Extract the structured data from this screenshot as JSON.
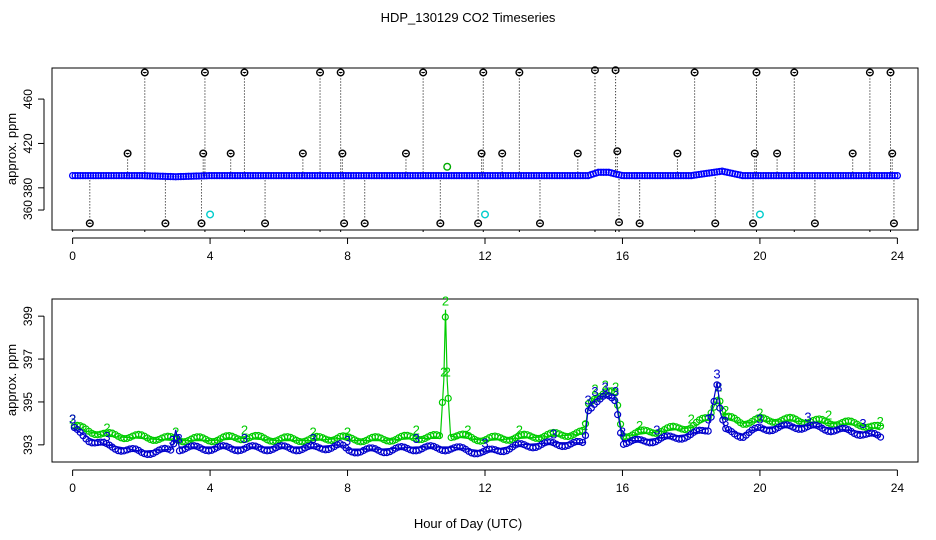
{
  "title": "HDP_130129  CO2 Timeseries",
  "xlabel": "Hour of Day (UTC)",
  "chart_data": [
    {
      "type": "scatter",
      "panel": "top",
      "ylabel": "approx. ppm",
      "xlim": [
        -0.6,
        24.6
      ],
      "ylim": [
        342,
        488
      ],
      "xticks": [
        0,
        4,
        8,
        12,
        16,
        20,
        24
      ],
      "yticks": [
        360,
        380,
        420,
        460
      ],
      "baseline": {
        "name": "blue series (~391 ppm)",
        "color": "#0000ff",
        "x": [
          0,
          2,
          3,
          4,
          8,
          12,
          14,
          15,
          15.3,
          15.6,
          16,
          18,
          18.9,
          19.5,
          20,
          22,
          24
        ],
        "y": [
          391,
          391,
          390,
          391,
          391,
          391,
          391,
          391,
          394,
          394,
          391,
          391,
          395,
          391,
          391,
          391,
          391
        ]
      },
      "spikes": {
        "name": "black outliers",
        "color": "#000000",
        "points": [
          {
            "x": 0.5,
            "y": 348
          },
          {
            "x": 1.6,
            "y": 411
          },
          {
            "x": 2.1,
            "y": 484
          },
          {
            "x": 2.7,
            "y": 348
          },
          {
            "x": 3.8,
            "y": 411
          },
          {
            "x": 3.85,
            "y": 484
          },
          {
            "x": 3.75,
            "y": 348
          },
          {
            "x": 4.6,
            "y": 411
          },
          {
            "x": 5.0,
            "y": 484
          },
          {
            "x": 5.6,
            "y": 348
          },
          {
            "x": 6.7,
            "y": 411
          },
          {
            "x": 7.2,
            "y": 484
          },
          {
            "x": 7.8,
            "y": 484
          },
          {
            "x": 7.85,
            "y": 411
          },
          {
            "x": 7.9,
            "y": 348
          },
          {
            "x": 8.5,
            "y": 348
          },
          {
            "x": 9.7,
            "y": 411
          },
          {
            "x": 10.2,
            "y": 484
          },
          {
            "x": 10.7,
            "y": 348
          },
          {
            "x": 11.8,
            "y": 348
          },
          {
            "x": 11.9,
            "y": 411
          },
          {
            "x": 11.95,
            "y": 484
          },
          {
            "x": 12.5,
            "y": 411
          },
          {
            "x": 13.0,
            "y": 484
          },
          {
            "x": 13.6,
            "y": 348
          },
          {
            "x": 14.7,
            "y": 411
          },
          {
            "x": 15.2,
            "y": 486
          },
          {
            "x": 15.8,
            "y": 486
          },
          {
            "x": 15.85,
            "y": 413
          },
          {
            "x": 15.9,
            "y": 349
          },
          {
            "x": 16.5,
            "y": 348
          },
          {
            "x": 17.6,
            "y": 411
          },
          {
            "x": 18.1,
            "y": 484
          },
          {
            "x": 18.7,
            "y": 348
          },
          {
            "x": 19.8,
            "y": 348
          },
          {
            "x": 19.85,
            "y": 411
          },
          {
            "x": 19.9,
            "y": 484
          },
          {
            "x": 20.5,
            "y": 411
          },
          {
            "x": 21.0,
            "y": 484
          },
          {
            "x": 21.6,
            "y": 348
          },
          {
            "x": 22.7,
            "y": 411
          },
          {
            "x": 23.2,
            "y": 484
          },
          {
            "x": 23.8,
            "y": 484
          },
          {
            "x": 23.85,
            "y": 411
          },
          {
            "x": 23.9,
            "y": 348
          }
        ]
      },
      "cyan_points": {
        "color": "#00cccc",
        "x": [
          4.0,
          12.0,
          20.0
        ],
        "y": [
          356,
          356,
          356
        ]
      },
      "green_points": {
        "color": "#00aa00",
        "x": [
          10.9
        ],
        "y": [
          399
        ]
      },
      "drop_lines": [
        0,
        2.1,
        3.85,
        5.0,
        7.2,
        7.8,
        10.2,
        11.95,
        13.0,
        15.2,
        15.8,
        15.9,
        18.1,
        19.9,
        21.0,
        23.2,
        23.8
      ]
    },
    {
      "type": "line",
      "panel": "bottom",
      "ylabel": "approx. ppm",
      "xlim": [
        -0.6,
        24.6
      ],
      "ylim": [
        392.2,
        399.8
      ],
      "xticks": [
        0,
        4,
        8,
        12,
        16,
        20,
        24
      ],
      "yticks": [
        393,
        395,
        397,
        399
      ],
      "series": [
        {
          "name": "series 2",
          "label": "2",
          "color": "#00cc00",
          "x": [
            0,
            0.5,
            1,
            2,
            3,
            4,
            5,
            6,
            7,
            7.8,
            8,
            9,
            10,
            10.7,
            10.8,
            10.85,
            10.9,
            11,
            11.5,
            12,
            13,
            14,
            14.9,
            15,
            15.2,
            15.5,
            15.8,
            16,
            16.5,
            17,
            18,
            18.5,
            18.8,
            18.9,
            19,
            19.5,
            20,
            21,
            22,
            23,
            23.5
          ],
          "y": [
            393.8,
            393.6,
            393.4,
            393.3,
            393.2,
            393.2,
            393.3,
            393.2,
            393.2,
            393.3,
            393.2,
            393.2,
            393.3,
            393.3,
            396,
            399.3,
            396,
            393.4,
            393.3,
            393.2,
            393.3,
            393.4,
            393.5,
            394.8,
            395.2,
            395.4,
            395.3,
            393.4,
            393.5,
            393.6,
            393.8,
            394.2,
            395.3,
            394.6,
            394.2,
            394,
            394.1,
            394.1,
            394,
            393.9,
            393.7
          ]
        },
        {
          "name": "series 3",
          "label": "3",
          "color": "#0000cc",
          "x": [
            0,
            0.5,
            1,
            2,
            2.9,
            3.0,
            3.1,
            4,
            5,
            6,
            7,
            7.8,
            8,
            9,
            10,
            11,
            12,
            13,
            14,
            14.9,
            15,
            15.2,
            15.5,
            15.8,
            16,
            16.5,
            17,
            18,
            18.5,
            18.75,
            18.8,
            18.85,
            19,
            19.5,
            20,
            21,
            21.4,
            22,
            23,
            23.5
          ],
          "y": [
            393.8,
            393.3,
            393.0,
            392.7,
            392.8,
            393.7,
            392.9,
            392.9,
            392.9,
            392.9,
            392.9,
            393.0,
            392.8,
            392.8,
            392.9,
            392.9,
            392.7,
            393.0,
            393.1,
            393.1,
            394.7,
            395.1,
            395.3,
            395.1,
            393.2,
            393.2,
            393.3,
            393.5,
            393.8,
            395.9,
            395.3,
            394.5,
            393.7,
            393.5,
            393.8,
            393.9,
            393.9,
            393.8,
            393.6,
            393.4
          ]
        }
      ]
    }
  ]
}
